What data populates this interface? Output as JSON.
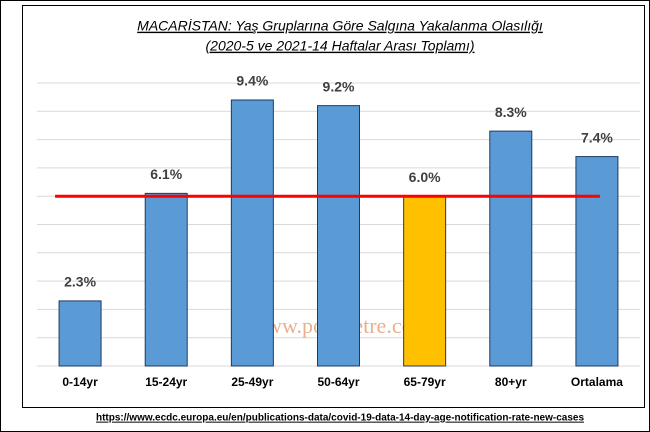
{
  "chart_data": {
    "type": "bar",
    "title": "MACARİSTAN: Yaş Gruplarına Göre Salgına Yakalanma Olasılığı",
    "subtitle": "(2020-5 ve 2021-14 Haftalar Arası Toplamı)",
    "categories": [
      "0-14yr",
      "15-24yr",
      "25-49yr",
      "50-64yr",
      "65-79yr",
      "80+yr",
      "Ortalama"
    ],
    "values": [
      2.3,
      6.1,
      9.4,
      9.2,
      6.0,
      8.3,
      7.4
    ],
    "value_labels": [
      "2.3%",
      "6.1%",
      "9.4%",
      "9.2%",
      "6.0%",
      "8.3%",
      "7.4%"
    ],
    "colors": [
      "#5b9bd5",
      "#5b9bd5",
      "#5b9bd5",
      "#5b9bd5",
      "#ffc000",
      "#5b9bd5",
      "#5b9bd5"
    ],
    "ylim": [
      0,
      10
    ],
    "yticks": [
      0,
      1,
      2,
      3,
      4,
      5,
      6,
      7,
      8,
      9,
      10
    ],
    "grid": true,
    "reference_line": {
      "value": 6.0,
      "color": "#ff0000"
    },
    "watermark": "www.polimetre.com",
    "source": "https://www.ecdc.europa.eu/en/publications-data/covid-19-data-14-day-age-notification-rate-new-cases"
  }
}
